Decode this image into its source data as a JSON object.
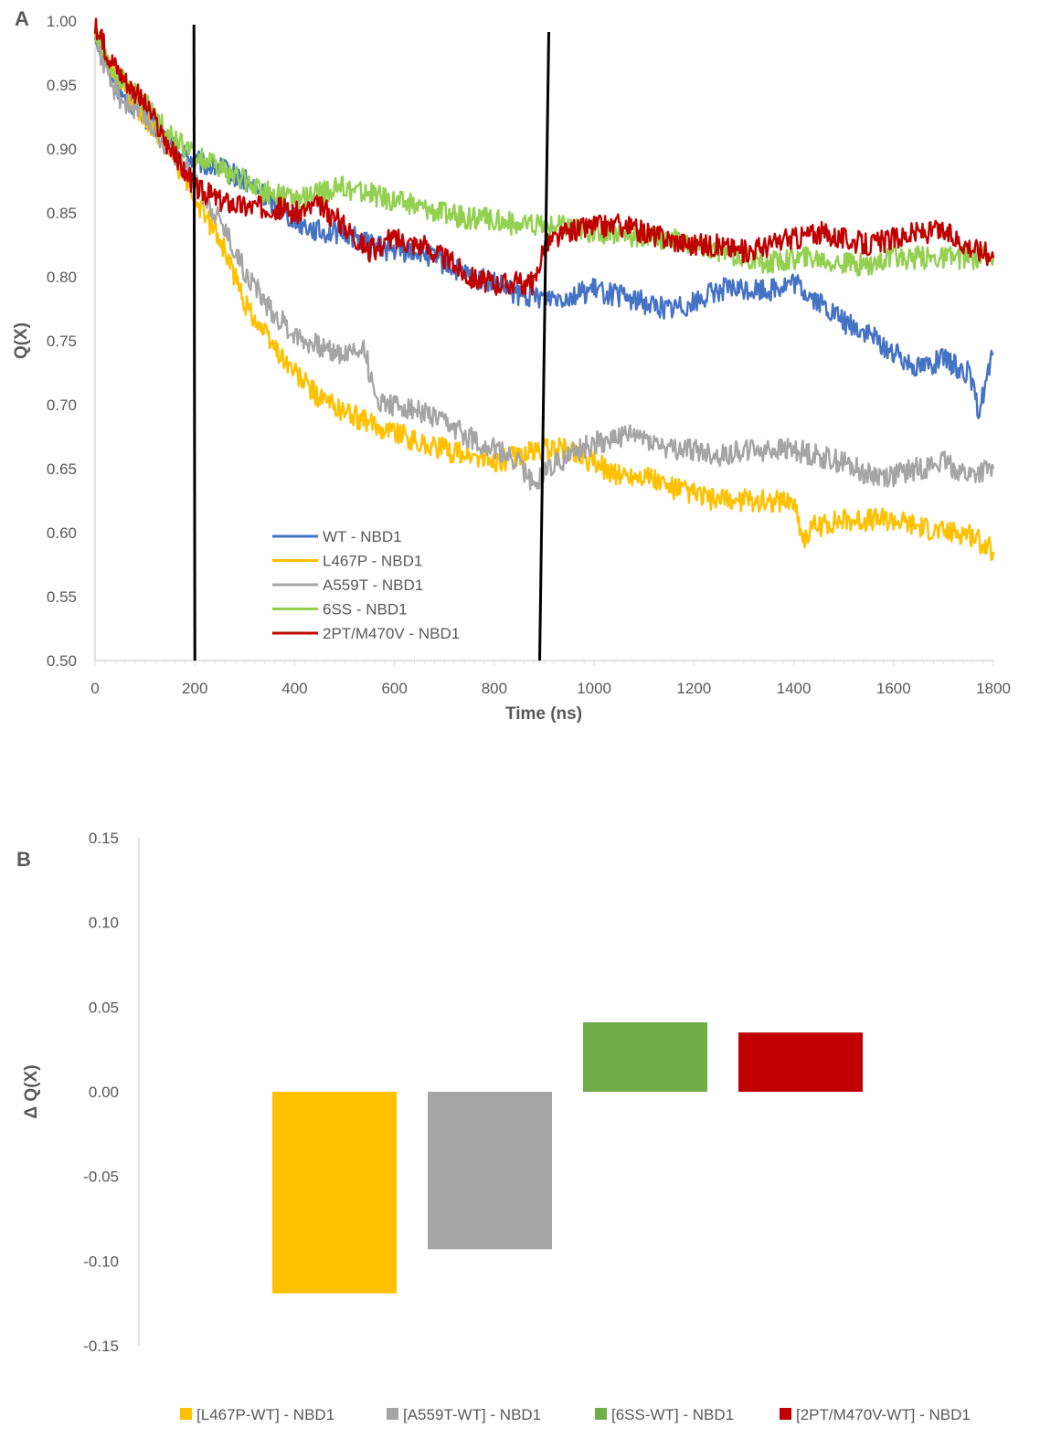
{
  "chart_data": [
    {
      "panel_label": "A",
      "type": "line",
      "xlabel": "Time (ns)",
      "ylabel": "Q(X)",
      "xlim": [
        0,
        1800
      ],
      "ylim": [
        0.5,
        1.0
      ],
      "x_ticks": [
        "0",
        "200",
        "400",
        "600",
        "800",
        "1000",
        "1200",
        "1400",
        "1600",
        "1800"
      ],
      "y_ticks": [
        "0.50",
        "0.55",
        "0.60",
        "0.65",
        "0.70",
        "0.75",
        "0.80",
        "0.85",
        "0.90",
        "0.95",
        "1.00"
      ],
      "grid": false,
      "legend_position": "bottom-left",
      "vertical_markers": [
        200,
        900
      ],
      "series": [
        {
          "name": "WT - NBD1",
          "color": "#4472C4",
          "x": [
            0,
            25,
            50,
            100,
            150,
            200,
            250,
            300,
            350,
            400,
            450,
            500,
            550,
            600,
            650,
            700,
            750,
            800,
            850,
            900,
            950,
            1000,
            1050,
            1100,
            1150,
            1200,
            1250,
            1300,
            1350,
            1400,
            1450,
            1500,
            1550,
            1600,
            1650,
            1700,
            1750,
            1770,
            1800
          ],
          "y": [
            0.99,
            0.965,
            0.945,
            0.925,
            0.905,
            0.89,
            0.885,
            0.875,
            0.86,
            0.845,
            0.835,
            0.835,
            0.825,
            0.82,
            0.82,
            0.81,
            0.8,
            0.795,
            0.785,
            0.785,
            0.785,
            0.79,
            0.785,
            0.78,
            0.775,
            0.78,
            0.79,
            0.79,
            0.79,
            0.795,
            0.78,
            0.765,
            0.755,
            0.74,
            0.73,
            0.735,
            0.725,
            0.695,
            0.74
          ]
        },
        {
          "name": "L467P - NBD1",
          "color": "#FFC000",
          "x": [
            0,
            25,
            50,
            100,
            150,
            200,
            250,
            300,
            350,
            400,
            450,
            500,
            550,
            600,
            650,
            700,
            750,
            800,
            850,
            900,
            950,
            1000,
            1050,
            1100,
            1150,
            1200,
            1250,
            1300,
            1350,
            1400,
            1420,
            1440,
            1500,
            1550,
            1600,
            1650,
            1700,
            1750,
            1800
          ],
          "y": [
            0.99,
            0.965,
            0.95,
            0.925,
            0.9,
            0.86,
            0.83,
            0.78,
            0.75,
            0.725,
            0.705,
            0.695,
            0.685,
            0.68,
            0.67,
            0.665,
            0.66,
            0.655,
            0.66,
            0.665,
            0.665,
            0.655,
            0.645,
            0.645,
            0.635,
            0.63,
            0.625,
            0.625,
            0.625,
            0.625,
            0.595,
            0.605,
            0.61,
            0.61,
            0.61,
            0.605,
            0.6,
            0.6,
            0.585
          ]
        },
        {
          "name": "A559T - NBD1",
          "color": "#A5A5A5",
          "x": [
            0,
            25,
            50,
            100,
            150,
            200,
            250,
            300,
            350,
            400,
            450,
            500,
            540,
            560,
            600,
            650,
            700,
            750,
            800,
            850,
            880,
            900,
            950,
            1000,
            1050,
            1100,
            1150,
            1200,
            1250,
            1300,
            1350,
            1400,
            1450,
            1500,
            1550,
            1600,
            1650,
            1700,
            1750,
            1800
          ],
          "y": [
            0.99,
            0.955,
            0.94,
            0.925,
            0.9,
            0.875,
            0.845,
            0.805,
            0.775,
            0.755,
            0.745,
            0.74,
            0.745,
            0.705,
            0.7,
            0.695,
            0.685,
            0.675,
            0.665,
            0.655,
            0.635,
            0.65,
            0.66,
            0.67,
            0.675,
            0.675,
            0.665,
            0.665,
            0.66,
            0.665,
            0.665,
            0.665,
            0.66,
            0.655,
            0.645,
            0.645,
            0.65,
            0.655,
            0.645,
            0.65
          ]
        },
        {
          "name": "6SS - NBD1",
          "color": "#92D050",
          "x": [
            0,
            25,
            50,
            100,
            150,
            200,
            250,
            300,
            350,
            400,
            450,
            500,
            550,
            600,
            650,
            700,
            750,
            800,
            850,
            900,
            950,
            1000,
            1050,
            1100,
            1150,
            1200,
            1250,
            1300,
            1350,
            1400,
            1450,
            1500,
            1550,
            1600,
            1650,
            1700,
            1750,
            1800
          ],
          "y": [
            0.99,
            0.965,
            0.955,
            0.935,
            0.91,
            0.895,
            0.885,
            0.875,
            0.865,
            0.86,
            0.865,
            0.87,
            0.865,
            0.86,
            0.855,
            0.85,
            0.845,
            0.845,
            0.84,
            0.84,
            0.84,
            0.835,
            0.835,
            0.83,
            0.83,
            0.825,
            0.82,
            0.815,
            0.81,
            0.815,
            0.815,
            0.81,
            0.81,
            0.815,
            0.815,
            0.815,
            0.815,
            0.815
          ]
        },
        {
          "name": "2PT/M470V - NBD1",
          "color": "#C00000",
          "x": [
            0,
            25,
            50,
            100,
            150,
            200,
            250,
            300,
            350,
            400,
            450,
            500,
            550,
            600,
            650,
            700,
            750,
            800,
            850,
            880,
            900,
            950,
            1000,
            1050,
            1100,
            1150,
            1200,
            1250,
            1300,
            1350,
            1400,
            1450,
            1500,
            1550,
            1600,
            1650,
            1700,
            1750,
            1800
          ],
          "y": [
            0.995,
            0.975,
            0.96,
            0.935,
            0.9,
            0.87,
            0.86,
            0.855,
            0.855,
            0.85,
            0.855,
            0.84,
            0.82,
            0.83,
            0.825,
            0.815,
            0.8,
            0.795,
            0.795,
            0.795,
            0.825,
            0.835,
            0.84,
            0.84,
            0.835,
            0.83,
            0.825,
            0.825,
            0.82,
            0.825,
            0.83,
            0.835,
            0.83,
            0.825,
            0.83,
            0.835,
            0.835,
            0.825,
            0.815
          ]
        }
      ]
    },
    {
      "panel_label": "B",
      "type": "bar",
      "ylabel": "Δ Q(X)",
      "xlabel": "",
      "ylim": [
        -0.15,
        0.15
      ],
      "y_ticks": [
        "0.15",
        "0.10",
        "0.05",
        "0.00",
        "-0.05",
        "-0.10",
        "-0.15"
      ],
      "grid": false,
      "legend_position": "bottom",
      "series": [
        {
          "name": "[L467P-WT] - NBD1",
          "color": "#FFC000",
          "value": -0.119
        },
        {
          "name": "[A559T-WT] - NBD1",
          "color": "#A5A5A5",
          "value": -0.093
        },
        {
          "name": "[6SS-WT] - NBD1",
          "color": "#70AD47",
          "value": 0.041
        },
        {
          "name": "[2PT/M470V-WT] - NBD1",
          "color": "#C00000",
          "value": 0.035
        }
      ]
    }
  ]
}
